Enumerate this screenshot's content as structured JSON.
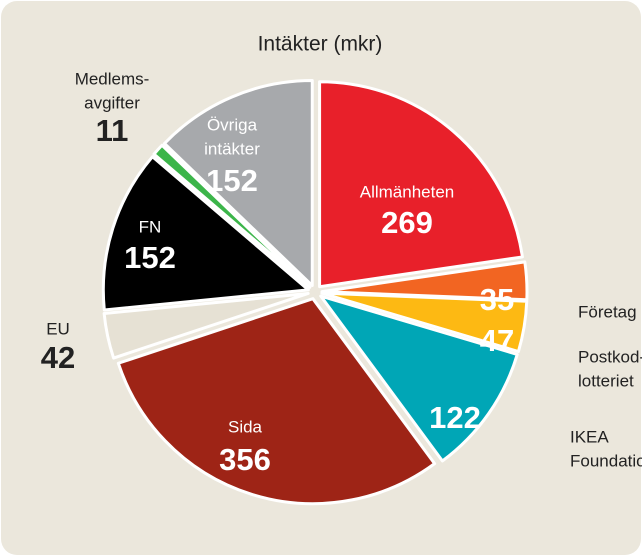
{
  "chart_data": {
    "type": "pie",
    "title": "Intäkter (mkr)",
    "categories": [
      [
        "Allmänheten"
      ],
      [
        "Företag"
      ],
      [
        "Postkod-",
        "lotteriet"
      ],
      [
        "IKEA",
        "Foundation"
      ],
      [
        "Sida"
      ],
      [
        "EU"
      ],
      [
        "FN"
      ],
      [
        "Medlems-",
        "avgifter"
      ],
      [
        "Övriga",
        "intäkter"
      ]
    ],
    "values": [
      269,
      35,
      47,
      122,
      356,
      42,
      152,
      11,
      152
    ],
    "colors": [
      "#e8202a",
      "#f26522",
      "#fdb913",
      "#00a6b6",
      "#9e2416",
      "#e6e1d4",
      "#000000",
      "#3cb54a",
      "#a7a9ac"
    ]
  }
}
